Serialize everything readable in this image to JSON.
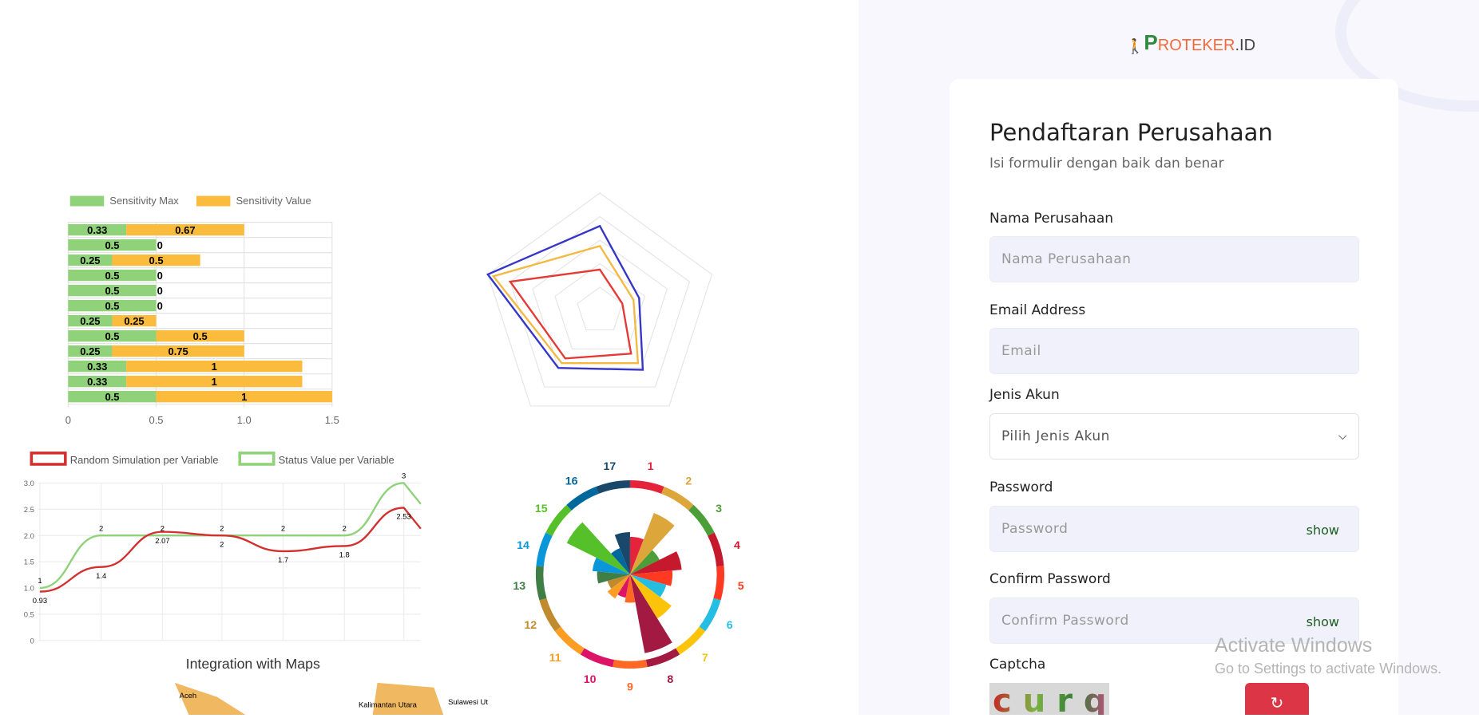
{
  "logo": {
    "p": "P",
    "rest": "ROTEKER",
    "id": ".ID"
  },
  "form": {
    "title": "Pendaftaran Perusahaan",
    "subtitle": "Isi formulir dengan baik dan benar",
    "company_label": "Nama Perusahaan",
    "company_placeholder": "Nama Perusahaan",
    "email_label": "Email Address",
    "email_placeholder": "Email",
    "account_label": "Jenis Akun",
    "account_value": "Pilih Jenis Akun",
    "password_label": "Password",
    "password_placeholder": "Password",
    "password_show": "show",
    "confirm_label": "Confirm Password",
    "confirm_placeholder": "Confirm Password",
    "confirm_show": "show",
    "captcha_label": "Captcha",
    "captcha_text": "curq",
    "refresh_icon": "↻"
  },
  "watermark": {
    "line1": "Activate Windows",
    "line2": "Go to Settings to activate Windows."
  },
  "collage": {
    "bar": {
      "legend": [
        "Sensitivity Max",
        "Sensitivity Value"
      ],
      "colors": [
        "#8fd27a",
        "#fbbc3e"
      ],
      "rows": [
        [
          0.33,
          0.67
        ],
        [
          0.5,
          0
        ],
        [
          0.25,
          0.5
        ],
        [
          0.5,
          0
        ],
        [
          0.5,
          0
        ],
        [
          0.5,
          0
        ],
        [
          0.25,
          0.25
        ],
        [
          0.5,
          0.5
        ],
        [
          0.25,
          0.75
        ],
        [
          0.33,
          1
        ],
        [
          0.33,
          1
        ],
        [
          0.5,
          1
        ]
      ],
      "ticks": [
        "0",
        "0.5",
        "1.0",
        "1.5"
      ]
    },
    "line": {
      "legend": [
        "Random Simulation per Variable",
        "Status Value per Variable"
      ],
      "red": [
        0.93,
        1.4,
        2.07,
        2,
        1.7,
        1.8,
        2.53
      ],
      "green": [
        1,
        2,
        2,
        2,
        2,
        2,
        3
      ],
      "yticks": [
        "0",
        "0.5",
        "1.0",
        "1.5",
        "2.0",
        "2.5",
        "3.0"
      ]
    },
    "maps_title": "Integration with Maps",
    "map_labels": [
      "Aceh",
      "Kalimantan Utara",
      "Sulawesi Ut"
    ]
  }
}
